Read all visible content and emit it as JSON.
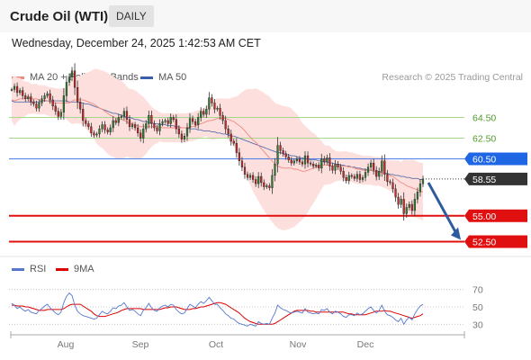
{
  "header": {
    "title": "Crude Oil (WTI)",
    "timeframe": "DAILY"
  },
  "datetime": "Wednesday, December 24, 2025 1:42:53 AM CET",
  "legend": {
    "ma20": {
      "label": "MA 20 + Bollinger Bands",
      "color": "#f08a80"
    },
    "ma50": {
      "label": "MA 50",
      "color": "#3a5ea8"
    },
    "rsi": {
      "label": "RSI",
      "color": "#5577cc"
    },
    "ma9": {
      "label": "9MA",
      "color": "#dd0000"
    }
  },
  "research": "Research © 2025 Trading Central",
  "chart_data": [
    {
      "type": "candlestick",
      "x_ticks": [
        "Aug",
        "Sep",
        "Oct",
        "Nov",
        "Dec"
      ],
      "ylim": [
        51.5,
        67.5
      ],
      "levels": [
        {
          "value": 64.5,
          "label": "64.50",
          "kind": "resistance"
        },
        {
          "value": 62.5,
          "label": "62.50",
          "kind": "resistance"
        },
        {
          "value": 60.5,
          "label": "60.50",
          "kind": "pivot"
        },
        {
          "value": 58.55,
          "label": "58.55",
          "kind": "last"
        },
        {
          "value": 55.0,
          "label": "55.00",
          "kind": "support"
        },
        {
          "value": 52.5,
          "label": "52.50",
          "kind": "support"
        }
      ],
      "close": [
        67.2,
        67.5,
        66.9,
        67.1,
        66.6,
        66.3,
        66.5,
        66.0,
        65.8,
        65.4,
        65.9,
        66.3,
        66.6,
        66.8,
        66.2,
        65.6,
        65.1,
        64.6,
        65.0,
        66.6,
        67.9,
        68.4,
        69.0,
        67.4,
        66.0,
        65.3,
        64.2,
        63.9,
        63.6,
        63.0,
        62.8,
        62.9,
        63.4,
        63.8,
        63.3,
        63.1,
        63.5,
        64.2,
        64.0,
        64.5,
        64.6,
        65.1,
        64.3,
        63.6,
        63.8,
        63.5,
        63.0,
        62.5,
        63.4,
        63.9,
        64.7,
        63.9,
        63.5,
        63.2,
        63.9,
        64.1,
        64.2,
        63.9,
        64.5,
        64.3,
        63.4,
        62.9,
        62.4,
        62.7,
        63.5,
        64.4,
        64.1,
        63.8,
        64.5,
        65.1,
        64.8,
        65.3,
        66.4,
        65.9,
        65.3,
        65.4,
        64.7,
        64.2,
        63.4,
        62.9,
        62.2,
        62.0,
        61.1,
        60.3,
        59.7,
        59.0,
        58.7,
        58.9,
        58.5,
        58.1,
        58.8,
        58.2,
        57.8,
        57.9,
        57.7,
        58.9,
        60.0,
        61.8,
        61.3,
        61.0,
        60.7,
        60.4,
        60.1,
        60.3,
        60.5,
        60.2,
        60.0,
        60.8,
        60.1,
        60.0,
        59.8,
        59.9,
        59.6,
        60.5,
        60.2,
        60.6,
        59.8,
        59.4,
        60.0,
        59.7,
        59.3,
        58.7,
        58.4,
        58.9,
        58.8,
        58.6,
        59.0,
        58.5,
        58.7,
        59.2,
        59.7,
        60.1,
        59.4,
        58.8,
        59.3,
        60.3,
        59.0,
        58.3,
        58.2,
        57.6,
        56.8,
        56.1,
        56.6,
        55.2,
        55.8,
        56.1,
        55.5,
        56.6,
        57.3,
        58.1,
        58.55
      ],
      "ma20": [
        66.2,
        66.1,
        66.2,
        66.3,
        66.3,
        66.3,
        66.4,
        66.3,
        66.3,
        66.3,
        66.2,
        66.2,
        66.2,
        66.1,
        66.0,
        66.0,
        65.9,
        65.9,
        65.9,
        65.9,
        65.9,
        65.9,
        66.1,
        66.2,
        66.2,
        66.2,
        66.2,
        66.1,
        66.0,
        65.9,
        65.8,
        65.6,
        65.4,
        65.3,
        65.1,
        64.9,
        64.7,
        64.6,
        64.4,
        64.3,
        64.3,
        64.2,
        64.1,
        63.9,
        63.9,
        63.8,
        63.7,
        63.6,
        63.6,
        63.6,
        63.6,
        63.6,
        63.6,
        63.6,
        63.6,
        63.5,
        63.5,
        63.5,
        63.5,
        63.5,
        63.5,
        63.5,
        63.5,
        63.5,
        63.5,
        63.6,
        63.6,
        63.7,
        63.8,
        63.9,
        64.0,
        64.1,
        64.2,
        64.2,
        64.3,
        64.4,
        64.4,
        64.4,
        64.4,
        64.3,
        64.2,
        64.1,
        63.9,
        63.7,
        63.5,
        63.2,
        62.9,
        62.6,
        62.3,
        62.1,
        61.8,
        61.5,
        61.2,
        60.9,
        60.6,
        60.3,
        60.0,
        59.8,
        59.7,
        59.6,
        59.6,
        59.6,
        59.6,
        59.5,
        59.5,
        59.4,
        59.3,
        59.3,
        59.4,
        59.5,
        59.6,
        59.7,
        59.8,
        59.9,
        59.9,
        59.9,
        59.9,
        59.8,
        59.8,
        59.8,
        59.8,
        59.8,
        59.8,
        59.7,
        59.7,
        59.6,
        59.5,
        59.5,
        59.4,
        59.4,
        59.4,
        59.4,
        59.3,
        59.3,
        59.3,
        59.2,
        59.1,
        59.0,
        58.9,
        58.8,
        58.6,
        58.4,
        58.2,
        58.1,
        57.9,
        57.8,
        57.7,
        57.6,
        57.5,
        57.4,
        57.3
      ],
      "ma50": [
        66.1,
        66.0,
        66.0,
        66.0,
        66.0,
        66.0,
        66.0,
        66.0,
        66.0,
        66.0,
        66.0,
        66.1,
        66.1,
        66.1,
        66.1,
        66.1,
        66.1,
        66.1,
        66.1,
        66.1,
        66.1,
        66.0,
        66.0,
        66.0,
        66.0,
        65.9,
        65.9,
        65.8,
        65.8,
        65.7,
        65.6,
        65.5,
        65.4,
        65.3,
        65.2,
        65.1,
        65.0,
        64.9,
        64.9,
        64.8,
        64.7,
        64.6,
        64.5,
        64.5,
        64.4,
        64.3,
        64.3,
        64.2,
        64.1,
        64.1,
        64.0,
        64.0,
        63.9,
        63.9,
        63.8,
        63.8,
        63.8,
        63.7,
        63.7,
        63.7,
        63.6,
        63.6,
        63.5,
        63.5,
        63.5,
        63.4,
        63.4,
        63.4,
        63.3,
        63.3,
        63.2,
        63.2,
        63.2,
        63.1,
        63.1,
        63.0,
        63.0,
        62.9,
        62.9,
        62.8,
        62.7,
        62.7,
        62.6,
        62.5,
        62.4,
        62.3,
        62.2,
        62.1,
        62.0,
        61.9,
        61.8,
        61.7,
        61.6,
        61.5,
        61.4,
        61.3,
        61.2,
        61.1,
        61.1,
        61.0,
        60.9,
        60.9,
        60.8,
        60.8,
        60.7,
        60.6,
        60.6,
        60.5,
        60.5,
        60.4,
        60.4,
        60.4,
        60.3,
        60.3,
        60.2,
        60.2,
        60.1,
        60.1,
        60.0,
        60.0,
        59.9,
        59.9,
        59.8,
        59.8,
        59.7,
        59.7,
        59.6,
        59.6,
        59.5,
        59.5,
        59.4,
        59.4,
        59.3,
        59.3,
        59.2,
        59.2,
        59.1,
        59.1,
        59.0,
        59.0,
        58.9,
        58.9,
        58.8,
        58.8,
        58.7,
        58.7,
        58.6,
        58.6,
        58.6,
        58.5,
        58.5
      ]
    },
    {
      "type": "line",
      "title": "RSI",
      "y_ticks": [
        70,
        50,
        30
      ],
      "ylim": [
        20,
        80
      ],
      "series": [
        {
          "name": "RSI",
          "values": [
            54,
            52,
            48,
            50,
            47,
            45,
            47,
            44,
            43,
            42,
            46,
            48,
            51,
            53,
            49,
            46,
            43,
            41,
            44,
            55,
            62,
            66,
            63,
            52,
            45,
            42,
            40,
            39,
            38,
            37,
            36,
            37,
            41,
            45,
            43,
            42,
            45,
            49,
            48,
            51,
            52,
            55,
            50,
            46,
            47,
            45,
            42,
            40,
            46,
            49,
            54,
            49,
            46,
            45,
            49,
            51,
            52,
            50,
            53,
            52,
            47,
            44,
            42,
            43,
            48,
            53,
            51,
            49,
            53,
            56,
            54,
            57,
            61,
            57,
            53,
            53,
            49,
            46,
            42,
            40,
            37,
            36,
            33,
            31,
            30,
            29,
            28,
            30,
            29,
            28,
            33,
            31,
            30,
            31,
            30,
            37,
            43,
            52,
            49,
            47,
            46,
            44,
            43,
            44,
            45,
            44,
            43,
            48,
            44,
            43,
            42,
            43,
            42,
            47,
            46,
            48,
            44,
            42,
            45,
            44,
            42,
            39,
            38,
            41,
            41,
            40,
            43,
            41,
            42,
            45,
            48,
            50,
            46,
            43,
            46,
            52,
            45,
            41,
            40,
            38,
            35,
            33,
            37,
            30,
            35,
            38,
            35,
            42,
            47,
            51,
            53
          ]
        },
        {
          "name": "9MA",
          "values": [
            52,
            52,
            51,
            51,
            51,
            50,
            50,
            49,
            48,
            47,
            46,
            46,
            46,
            47,
            47,
            47,
            47,
            47,
            47,
            48,
            50,
            52,
            53,
            53,
            53,
            53,
            51,
            49,
            47,
            45,
            42,
            40,
            39,
            39,
            39,
            40,
            41,
            42,
            43,
            44,
            46,
            47,
            48,
            48,
            48,
            48,
            48,
            48,
            47,
            47,
            47,
            47,
            47,
            47,
            47,
            48,
            49,
            49,
            50,
            50,
            50,
            49,
            48,
            47,
            47,
            47,
            48,
            48,
            49,
            50,
            50,
            51,
            52,
            53,
            54,
            55,
            55,
            54,
            53,
            51,
            49,
            47,
            45,
            43,
            40,
            37,
            35,
            33,
            32,
            31,
            30,
            30,
            30,
            30,
            30,
            30,
            31,
            33,
            35,
            37,
            39,
            41,
            43,
            45,
            46,
            46,
            46,
            46,
            46,
            45,
            45,
            44,
            44,
            44,
            44,
            44,
            44,
            44,
            44,
            44,
            44,
            44,
            43,
            42,
            42,
            41,
            41,
            41,
            41,
            41,
            42,
            43,
            44,
            45,
            45,
            45,
            46,
            45,
            45,
            44,
            43,
            42,
            41,
            40,
            39,
            38,
            37,
            38,
            39,
            40,
            42
          ]
        }
      ]
    }
  ]
}
